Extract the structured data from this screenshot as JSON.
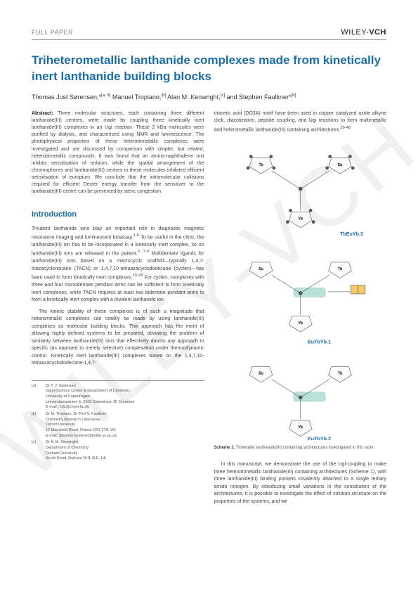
{
  "header": {
    "paper_type": "FULL PAPER",
    "publisher_light": "WILEY-",
    "publisher_bold": "VCH"
  },
  "title": "Triheterometallic lanthanide complexes made from kinetically inert lanthanide building blocks",
  "authors_html": "Thomas Just Sørensen,*<sup>[a, b]</sup> Manuel Tropiano,<sup>[b]</sup> Alan M. Kenwright,<sup>[c]</sup> and Stephen Faulkner*<sup>[b]</sup>",
  "abstract_label": "Abstract:",
  "abstract": "Three molecular structures, each containing three different lanthanide(III) centres, were made by coupling three kinetically inert lanthanide(III) complexes in an Ugi reaction. These 2 kDa molecules were purified by dialysis, and characterised using NMR and luminescence. The photophysical properties of these heterotrimetallic complexes were investigated and are discussed by comparison with simpler, but related, heterobimetallic compounds. It was found that an amino-naphthalene unit inhibits sensitisation of terbium, while the spatial arrangement of the chromophores and lanthanide(III) centres in these molecules inhibited efficient sensitisation of europium. We conclude that the intramolecular collisions required for efficient Dexter energy transfer from the sensitizer to the lanthanide(III) centre can be prevented by steric congestion.",
  "section_intro": "Introduction",
  "intro_p1": "Trivalent lanthanide ions play an important role in diagnostic magnetic resonance imaging and luminescent bioassay.<sup>1-6</sup> To be useful in the clinic, the lanthanide(III) ion has to be incorporated in a kinetically inert complex, so no lanthanide(III) ions are released in the patient.<sup>2, 7-9</sup> Multidentate ligands for lanthanide(III) ions based on a macrocyclic scaffold—typically 1,4,7-triazacyclononane (TACN) or 1,4,7,10-tetraazacyclododecane (cyclen)—has been used to form kinetically inert complexes.<sup>10-28</sup> For cyclen, complexes with three and four monodentate pendant arms can be sufficient to form kinetically inert complexes, while TACN requires at least two bidentate pendant arms to form a kinetically inert complex with a trivalent lanthanide ion.",
  "intro_p2": "The kinetic stability of these complexes is of such a magnitude that heterometallic complexes can readily be made by using lanthanide(III) complexes as molecular building blocks. This approach has the merit of allowing highly defined systems to be prepared, obviating the problem of similarity between lanthanide(III) ions that effectively dooms any approach to specific (as opposed to merely selective) complexation under thermodynamic control. Kinetically inert lanthanide(III) complexes based on the 1,4,7,10-tetraazacyclododecane-1,4,7-",
  "col2_top": "triacetic acid (DO3A) motif have been used in copper catalyzed azide alkyne click, diazotization, peptide coupling, and Ugi reactions to form multimetallic and heterometallic lanthanide(III) containing architectures.<sup>29-46</sup>",
  "scheme_caption_bold": "Scheme 1.",
  "scheme_caption": "Trimetallic lanthanide(III) containing architectures investigated in this work.",
  "col2_p2": "In this manuscript, we demonstrate the use of the Ugi-coupling to make three heterotrimetallic lanthanide(III) containing architectures (Scheme 1), with three lanthanide(III) binding pockets covalently attached to a single tertiary amido nitrogen. By introducing small variations in the constitution of the architectures, it is possible to investigate the effect of solution structure on the properties of the systems, and we",
  "affiliations": [
    {
      "tag": "[a]",
      "lines": [
        "Dr T. J. Sørensen",
        "Nano-Science Center & Department of Chemistry",
        "University of Copenhagen",
        "Universitetsparken 5, 2100 København Ø, Denmark",
        "E-mail: TJS@chem.ku.dk"
      ]
    },
    {
      "tag": "[b]",
      "lines": [
        "Dr M. Tropiano, Dr Prof S. Faulkner",
        "Chemistry Research Laboratory",
        "Oxford University",
        "12 Mansfield Road, Oxford OX1 3TA, UK",
        "E-mail: Stephen.faulkner@keble.ox.ac.uk"
      ]
    },
    {
      "tag": "[c]",
      "lines": [
        "Dr A. M. Kenwright",
        "Department of Chemistry",
        "Durham University",
        "South Road, Durham DH1 3LE, UK"
      ]
    }
  ],
  "scheme": {
    "labels": [
      "TbEuYb.3",
      "EuTbYb.1",
      "EuTbYb.2"
    ],
    "label_color": "#1a6da8",
    "bond_color": "#555555",
    "metal_colors": {
      "Tb": "#888888",
      "Eu": "#888888",
      "Yb": "#888888"
    },
    "highlight_color": "#7fc8bc",
    "naphthalene_fill": "#f5c86b"
  },
  "watermark": "WILEY-VCH",
  "colors": {
    "title": "#1a6da8",
    "body": "#444444",
    "rule": "#999999"
  }
}
